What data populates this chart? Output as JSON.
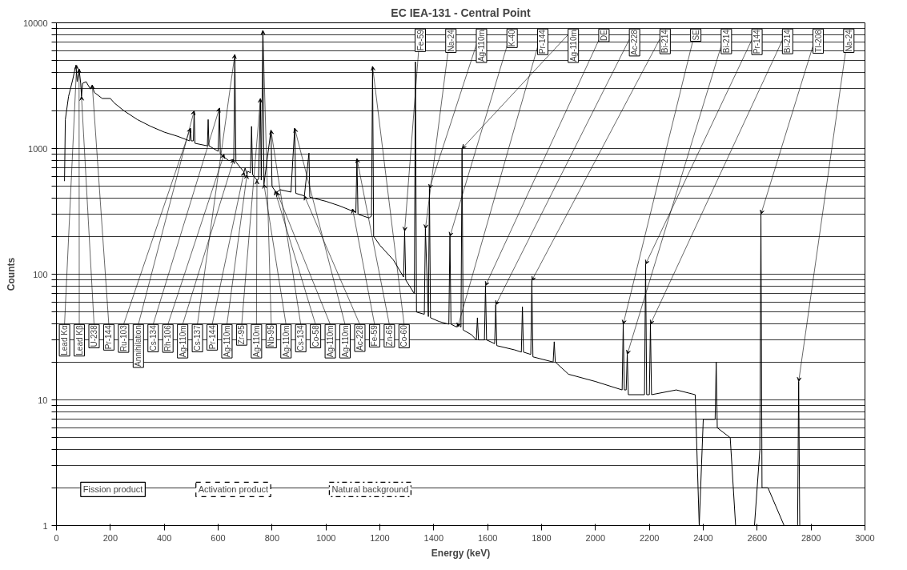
{
  "chart_data": {
    "type": "line",
    "title": "EC IEA-131 - Central Point",
    "xlabel": "Energy (keV)",
    "ylabel": "Counts",
    "log": "y",
    "grid": "y",
    "marker": "none",
    "line_style": "solid",
    "color": "#000000",
    "xlim": [
      0,
      3000
    ],
    "xticks": [
      0,
      200,
      400,
      600,
      800,
      1000,
      1200,
      1400,
      1600,
      1800,
      2000,
      2200,
      2400,
      2600,
      2800,
      3000
    ],
    "ylim": [
      1,
      10000
    ],
    "yticks": [
      1,
      {
        "value": 2,
        "label": null
      },
      {
        "value": 3,
        "label": null
      },
      {
        "value": 4,
        "label": null
      },
      {
        "value": 5,
        "label": null
      },
      {
        "value": 6,
        "label": null
      },
      {
        "value": 7,
        "label": null
      },
      {
        "value": 8,
        "label": null
      },
      {
        "value": 9,
        "label": null
      },
      10,
      {
        "value": 20,
        "label": null
      },
      {
        "value": 30,
        "label": null
      },
      {
        "value": 40,
        "label": null
      },
      {
        "value": 50,
        "label": null
      },
      {
        "value": 60,
        "label": null
      },
      {
        "value": 70,
        "label": null
      },
      {
        "value": 80,
        "label": null
      },
      {
        "value": 90,
        "label": null
      },
      100,
      {
        "value": 200,
        "label": null
      },
      {
        "value": 300,
        "label": null
      },
      {
        "value": 400,
        "label": null
      },
      {
        "value": 500,
        "label": null
      },
      {
        "value": 600,
        "label": null
      },
      {
        "value": 700,
        "label": null
      },
      {
        "value": 800,
        "label": null
      },
      {
        "value": 900,
        "label": null
      },
      1000,
      {
        "value": 2000,
        "label": null
      },
      {
        "value": 3000,
        "label": null
      },
      {
        "value": 4000,
        "label": null
      },
      {
        "value": 5000,
        "label": null
      },
      {
        "value": 6000,
        "label": null
      },
      {
        "value": 7000,
        "label": null
      },
      {
        "value": 8000,
        "label": null
      },
      {
        "value": 9000,
        "label": null
      },
      10000
    ],
    "x": [
      30,
      33,
      45,
      60,
      72,
      77,
      84,
      90,
      93,
      97,
      110,
      125,
      133,
      140,
      170,
      200,
      215,
      250,
      300,
      350,
      400,
      450,
      494,
      497,
      500,
      508,
      511,
      514,
      560,
      563,
      566,
      600,
      605,
      608,
      640,
      658,
      662,
      666,
      696,
      700,
      707,
      710,
      720,
      724,
      728,
      744,
      750,
      757,
      760,
      766,
      770,
      796,
      800,
      811,
      818,
      830,
      870,
      884,
      888,
      920,
      937,
      940,
      1000,
      1050,
      1095,
      1099,
      1103,
      1111,
      1115,
      1119,
      1160,
      1169,
      1173,
      1177,
      1200,
      1250,
      1288,
      1292,
      1296,
      1328,
      1332,
      1336,
      1365,
      1369,
      1380,
      1384,
      1388,
      1420,
      1456,
      1460,
      1464,
      1485,
      1489,
      1501,
      1505,
      1509,
      1540,
      1558,
      1562,
      1566,
      1588,
      1592,
      1596,
      1626,
      1630,
      1634,
      1700,
      1725,
      1729,
      1733,
      1760,
      1764,
      1768,
      1843,
      1847,
      1851,
      1900,
      2000,
      2099,
      2103,
      2107,
      2114,
      2118,
      2122,
      2182,
      2186,
      2190,
      2200,
      2204,
      2208,
      2300,
      2370,
      2385,
      2400,
      2444,
      2448,
      2452,
      2500,
      2520,
      2560,
      2590,
      2610,
      2614,
      2618,
      2640,
      2700,
      2750,
      2754,
      2758,
      2800,
      2900,
      3000
    ],
    "values": [
      550,
      1700,
      2600,
      3500,
      4600,
      3400,
      4300,
      3300,
      2600,
      3300,
      3400,
      3000,
      3200,
      2800,
      2500,
      2500,
      2300,
      2000,
      1700,
      1500,
      1350,
      1250,
      1150,
      1450,
      1150,
      1150,
      2000,
      1100,
      1050,
      1700,
      1050,
      950,
      2100,
      900,
      800,
      820,
      5600,
      780,
      650,
      700,
      620,
      660,
      640,
      1500,
      620,
      560,
      570,
      2500,
      560,
      8700,
      520,
      1400,
      500,
      460,
      450,
      470,
      450,
      1450,
      440,
      420,
      920,
      410,
      380,
      350,
      320,
      330,
      320,
      310,
      830,
      300,
      280,
      290,
      4500,
      200,
      170,
      130,
      95,
      220,
      90,
      70,
      4900,
      50,
      48,
      230,
      46,
      480,
      45,
      42,
      40,
      200,
      40,
      38,
      40,
      38,
      1000,
      36,
      33,
      30,
      45,
      30,
      30,
      81,
      30,
      28,
      57,
      27,
      25,
      24,
      55,
      24,
      23,
      89,
      22,
      20,
      29,
      20,
      16,
      14,
      12,
      40,
      12,
      12,
      23,
      11,
      11,
      120,
      11,
      11,
      40,
      11,
      12,
      11,
      1,
      7,
      7,
      20,
      6,
      5,
      1,
      1,
      1,
      4,
      300,
      2,
      2,
      1,
      1,
      14,
      1,
      1,
      1,
      1
    ],
    "annotations": [
      {
        "text": "Lead Kα",
        "x": 75,
        "y": 4600
      },
      {
        "text": "Lead Kβ",
        "x": 84,
        "y": 4300
      },
      {
        "text": "U-238",
        "x": 93,
        "y": 2600
      },
      {
        "text": "Pr-144",
        "x": 133,
        "y": 3200
      },
      {
        "text": "Ru-103",
        "x": 497,
        "y": 1450
      },
      {
        "text": "Annihilation",
        "x": 511,
        "y": 2000
      },
      {
        "text": "Cs-134",
        "x": 605,
        "y": 2100
      },
      {
        "text": "Rh-106",
        "x": 622,
        "y": 900
      },
      {
        "text": "Ag-110m",
        "x": 658,
        "y": 820
      },
      {
        "text": "Cs-137",
        "x": 662,
        "y": 5600
      },
      {
        "text": "Pr-144",
        "x": 696,
        "y": 650
      },
      {
        "text": "Ag-110m",
        "x": 707,
        "y": 620
      },
      {
        "text": "Zr-95",
        "x": 757,
        "y": 2500
      },
      {
        "text": "Ag-110m",
        "x": 744,
        "y": 560
      },
      {
        "text": "Nb-95",
        "x": 766,
        "y": 8700
      },
      {
        "text": "Ag-110m",
        "x": 770,
        "y": 520
      },
      {
        "text": "Cs-134",
        "x": 796,
        "y": 1400
      },
      {
        "text": "Co-58",
        "x": 811,
        "y": 460
      },
      {
        "text": "Ag-110m",
        "x": 818,
        "y": 450
      },
      {
        "text": "Ag-110m",
        "x": 884,
        "y": 1450
      },
      {
        "text": "Ac-228",
        "x": 920,
        "y": 420
      },
      {
        "text": "Fe-59",
        "x": 1099,
        "y": 330
      },
      {
        "text": "Zn-65",
        "x": 1115,
        "y": 830
      },
      {
        "text": "Co-60",
        "x": 1173,
        "y": 4500
      },
      {
        "text": "Fe-59",
        "x": 1292,
        "y": 220
      },
      {
        "text": "Na-24",
        "x": 1369,
        "y": 230
      },
      {
        "text": "Ag-110m",
        "x": 1384,
        "y": 480
      },
      {
        "text": "K-40",
        "x": 1460,
        "y": 200
      },
      {
        "text": "Pr-144",
        "x": 1489,
        "y": 38
      },
      {
        "text": "Ag-110m",
        "x": 1505,
        "y": 1000
      },
      {
        "text": "DE",
        "x": 1592,
        "y": 81
      },
      {
        "text": "Ac-228",
        "x": 1630,
        "y": 57
      },
      {
        "text": "Bi-214",
        "x": 1764,
        "y": 89
      },
      {
        "text": "SE",
        "x": 2103,
        "y": 40
      },
      {
        "text": "Bi-214",
        "x": 2118,
        "y": 23
      },
      {
        "text": "Pr-144",
        "x": 2186,
        "y": 120
      },
      {
        "text": "Bi-214",
        "x": 2204,
        "y": 40
      },
      {
        "text": "Tl-208",
        "x": 2614,
        "y": 300
      },
      {
        "text": "Na-24",
        "x": 2754,
        "y": 14
      },
      "Fission product",
      "Activation product",
      "Natural background"
    ]
  }
}
